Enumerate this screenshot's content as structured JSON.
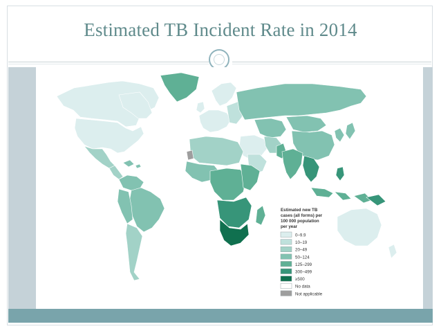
{
  "slide": {
    "title": "Estimated TB Incident Rate in 2014"
  },
  "legend": {
    "title_lines": [
      "Estimated new TB",
      "cases (all forms) per",
      "100 000 population",
      "per year"
    ],
    "items": [
      {
        "label": "0–9.9",
        "color": "#dceeee"
      },
      {
        "label": "10–19",
        "color": "#bfe1dc"
      },
      {
        "label": "20–49",
        "color": "#a2d2c7"
      },
      {
        "label": "50–124",
        "color": "#82c2b1"
      },
      {
        "label": "125–299",
        "color": "#5fb095"
      },
      {
        "label": "300–499",
        "color": "#379579"
      },
      {
        "label": "≥500",
        "color": "#10704f"
      },
      {
        "label": "No data",
        "color": "#ffffff"
      },
      {
        "label": "Not applicable",
        "color": "#9e9e9e"
      }
    ]
  },
  "colors": {
    "title": "#5f8a8b",
    "band": "#79a4ab",
    "gutter": "#c5d2d8"
  }
}
